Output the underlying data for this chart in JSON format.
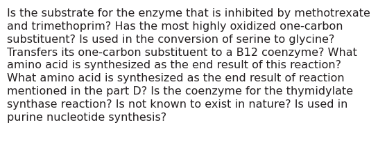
{
  "text_lines": [
    "Is the substrate for the enzyme that is inhibited by methotrexate",
    "and trimethoprim? Has the most highly oxidized one-carbon",
    "substituent? Is used in the conversion of serine to glycine?",
    "Transfers its one-carbon substituent to a B12 coenzyme? What",
    "amino acid is synthesized as the end result of this reaction?",
    "What amino acid is synthesized as the end result of reaction",
    "mentioned in the part D? Is the coenzyme for the thymidylate",
    "synthase reaction? Is not known to exist in nature? Is used in",
    "purine nucleotide synthesis?"
  ],
  "background_color": "#ffffff",
  "text_color": "#231f20",
  "font_size": 11.5,
  "fig_width": 5.58,
  "fig_height": 2.3,
  "dpi": 100
}
